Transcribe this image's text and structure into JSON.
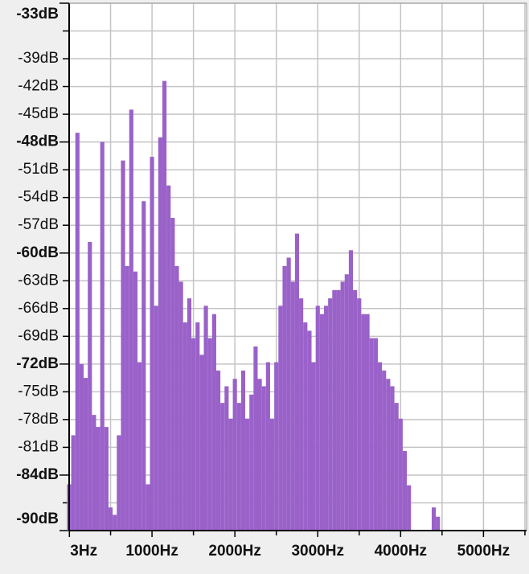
{
  "chart_data": {
    "type": "bar",
    "x": [
      0,
      50,
      100,
      150,
      200,
      250,
      300,
      350,
      400,
      450,
      500,
      550,
      600,
      650,
      700,
      750,
      800,
      850,
      900,
      950,
      1000,
      1050,
      1100,
      1150,
      1200,
      1250,
      1300,
      1350,
      1400,
      1450,
      1500,
      1550,
      1600,
      1650,
      1700,
      1750,
      1800,
      1850,
      1900,
      1950,
      2000,
      2050,
      2100,
      2150,
      2200,
      2250,
      2300,
      2350,
      2400,
      2450,
      2500,
      2550,
      2600,
      2650,
      2700,
      2750,
      2800,
      2850,
      2900,
      2950,
      3000,
      3050,
      3100,
      3150,
      3200,
      3250,
      3300,
      3350,
      3400,
      3450,
      3500,
      3550,
      3600,
      3650,
      3700,
      3750,
      3800,
      3850,
      3900,
      3950,
      4000,
      4050,
      4100,
      4400,
      4450
    ],
    "values": [
      -85,
      -79.7,
      -47,
      -72,
      -73.5,
      -58.8,
      -77.5,
      -78.8,
      -48,
      -78.8,
      -87.5,
      -88.3,
      -79.7,
      -50,
      -61.4,
      -44.5,
      -62,
      -71.8,
      -54.4,
      -85,
      -49.6,
      -65.7,
      -47.5,
      -41.4,
      -52.7,
      -56.2,
      -61.4,
      -63.1,
      -67.5,
      -64.9,
      -69.2,
      -67.5,
      -71,
      -65.7,
      -69.2,
      -66.6,
      -72.7,
      -76.2,
      -74.4,
      -77.9,
      -73.6,
      -76.2,
      -72.7,
      -77.9,
      -75.3,
      -70.1,
      -73.6,
      -74.4,
      -71.8,
      -77.9,
      -71.8,
      -65.7,
      -61.4,
      -60.5,
      -63.1,
      -57.9,
      -64.9,
      -67.5,
      -68.4,
      -71.8,
      -65.7,
      -66.6,
      -65.7,
      -64.9,
      -64,
      -64,
      -63.1,
      -62.3,
      -59.7,
      -64,
      -64.9,
      -66.6,
      -66.6,
      -69.2,
      -69.2,
      -71.8,
      -72.7,
      -73.6,
      -74.4,
      -76.2,
      -77.9,
      -81.4,
      -85.1,
      -87.5,
      -88.5
    ],
    "color": "#9a62c9",
    "bar_width": 50,
    "xlim": [
      0,
      5520
    ],
    "ylim": [
      -90,
      -33
    ],
    "xticks": [
      {
        "value": 3,
        "label": "3Hz"
      },
      {
        "value": 1000,
        "label": "1000Hz"
      },
      {
        "value": 2000,
        "label": "2000Hz"
      },
      {
        "value": 3000,
        "label": "3000Hz"
      },
      {
        "value": 4000,
        "label": "4000Hz"
      },
      {
        "value": 5000,
        "label": "5000Hz"
      }
    ],
    "xminorticks": [
      500,
      1500,
      2500,
      3500,
      4500,
      5500
    ],
    "yticks": [
      {
        "value": -33,
        "label": "-33dB",
        "major": true
      },
      {
        "value": -39,
        "label": "-39dB"
      },
      {
        "value": -42,
        "label": "-42dB"
      },
      {
        "value": -45,
        "label": "-45dB"
      },
      {
        "value": -48,
        "label": "-48dB",
        "major": true
      },
      {
        "value": -51,
        "label": "-51dB"
      },
      {
        "value": -54,
        "label": "-54dB"
      },
      {
        "value": -57,
        "label": "-57dB"
      },
      {
        "value": -60,
        "label": "-60dB",
        "major": true
      },
      {
        "value": -63,
        "label": "-63dB"
      },
      {
        "value": -66,
        "label": "-66dB"
      },
      {
        "value": -69,
        "label": "-69dB"
      },
      {
        "value": -72,
        "label": "-72dB",
        "major": true
      },
      {
        "value": -75,
        "label": "-75dB"
      },
      {
        "value": -78,
        "label": "-78dB"
      },
      {
        "value": -81,
        "label": "-81dB"
      },
      {
        "value": -84,
        "label": "-84dB",
        "major": true
      },
      {
        "value": -90,
        "label": "-90dB",
        "major": true
      }
    ],
    "yminorticks": [
      -36,
      -87
    ],
    "grid": true
  }
}
